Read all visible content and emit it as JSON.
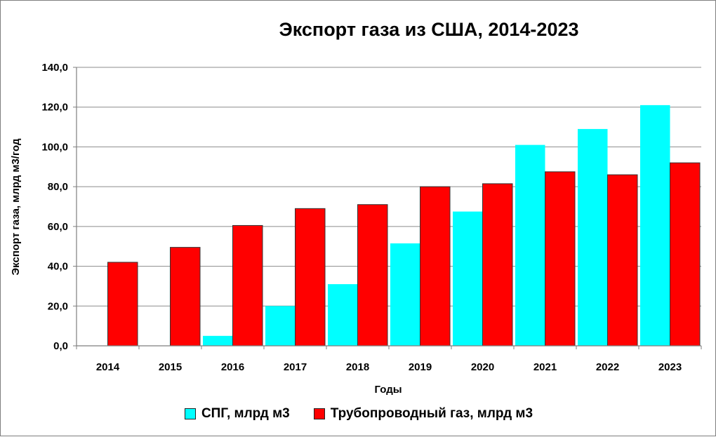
{
  "chart_data": {
    "type": "bar",
    "title": "Экспорт газа из США, 2014-2023",
    "xlabel": "Годы",
    "ylabel": "Экспорт газа, млрд м3/год",
    "categories": [
      "2014",
      "2015",
      "2016",
      "2017",
      "2018",
      "2019",
      "2020",
      "2021",
      "2022",
      "2023"
    ],
    "ylim": [
      0,
      140
    ],
    "yticks": [
      "0,0",
      "20,0",
      "40,0",
      "60,0",
      "80,0",
      "100,0",
      "120,0",
      "140,0"
    ],
    "grid": true,
    "legend_position": "bottom",
    "series": [
      {
        "name": "СПГ, млрд м3",
        "color": "#00ffff",
        "values": [
          0,
          0,
          5,
          20,
          31,
          51.5,
          67.5,
          101,
          109,
          121
        ]
      },
      {
        "name": "Трубопроводный газ, млрд м3",
        "color": "#ff0000",
        "values": [
          42,
          49.5,
          60.5,
          69,
          71,
          80,
          81.5,
          87.5,
          86,
          92
        ]
      }
    ]
  }
}
